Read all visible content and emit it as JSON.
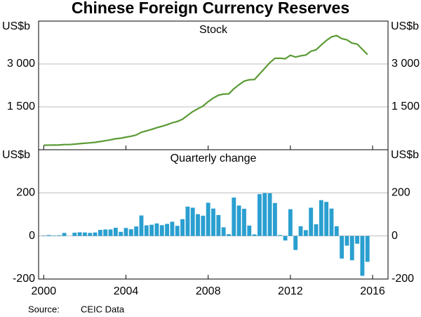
{
  "title": "Chinese Foreign Currency Reserves",
  "source_label": "Source:",
  "source": "CEIC Data",
  "chart_data": [
    {
      "type": "line",
      "title": "Stock",
      "ylabel": "US$b",
      "xlim": [
        1999.75,
        2016.75
      ],
      "ylim": [
        0,
        4500
      ],
      "yticks": [
        {
          "value": 1500,
          "label": "1 500"
        },
        {
          "value": 3000,
          "label": "3 000"
        }
      ],
      "grid": true,
      "x": [
        2000,
        2000.25,
        2000.5,
        2000.75,
        2001,
        2001.25,
        2001.5,
        2001.75,
        2002,
        2002.25,
        2002.5,
        2002.75,
        2003,
        2003.25,
        2003.5,
        2003.75,
        2004,
        2004.25,
        2004.5,
        2004.75,
        2005,
        2005.25,
        2005.5,
        2005.75,
        2006,
        2006.25,
        2006.5,
        2006.75,
        2007,
        2007.25,
        2007.5,
        2007.75,
        2008,
        2008.25,
        2008.5,
        2008.75,
        2009,
        2009.25,
        2009.5,
        2009.75,
        2010,
        2010.25,
        2010.5,
        2010.75,
        2011,
        2011.25,
        2011.5,
        2011.75,
        2012,
        2012.25,
        2012.5,
        2012.75,
        2013,
        2013.25,
        2013.5,
        2013.75,
        2014,
        2014.25,
        2014.5,
        2014.75,
        2015,
        2015.25,
        2015.5,
        2015.75
      ],
      "series": [
        {
          "name": "Stock",
          "color": "#5a9a34",
          "values": [
            157,
            161,
            163,
            166,
            180,
            180,
            195,
            212,
            228,
            242,
            258,
            286,
            316,
            346,
            384,
            403,
            440,
            471,
            515,
            610,
            659,
            711,
            769,
            819,
            875,
            941,
            988,
            1066,
            1202,
            1333,
            1434,
            1528,
            1682,
            1809,
            1906,
            1946,
            1954,
            2132,
            2273,
            2399,
            2447,
            2454,
            2648,
            2847,
            3045,
            3198,
            3202,
            3181,
            3305,
            3240,
            3285,
            3312,
            3443,
            3497,
            3663,
            3821,
            3948,
            3993,
            3888,
            3843,
            3730,
            3694,
            3514,
            3330
          ]
        }
      ]
    },
    {
      "type": "bar",
      "title": "Quarterly change",
      "ylabel": "US$b",
      "xlim": [
        1999.75,
        2016.75
      ],
      "xticks": [
        2000,
        2004,
        2008,
        2012,
        2016
      ],
      "ylim": [
        -200,
        400
      ],
      "yticks": [
        -200,
        0,
        200
      ],
      "grid": true,
      "x": [
        2000,
        2000.25,
        2000.5,
        2000.75,
        2001,
        2001.25,
        2001.5,
        2001.75,
        2002,
        2002.25,
        2002.5,
        2002.75,
        2003,
        2003.25,
        2003.5,
        2003.75,
        2004,
        2004.25,
        2004.5,
        2004.75,
        2005,
        2005.25,
        2005.5,
        2005.75,
        2006,
        2006.25,
        2006.5,
        2006.75,
        2007,
        2007.25,
        2007.5,
        2007.75,
        2008,
        2008.25,
        2008.5,
        2008.75,
        2009,
        2009.25,
        2009.5,
        2009.75,
        2010,
        2010.25,
        2010.5,
        2010.75,
        2011,
        2011.25,
        2011.5,
        2011.75,
        2012,
        2012.25,
        2012.5,
        2012.75,
        2013,
        2013.25,
        2013.5,
        2013.75,
        2014,
        2014.25,
        2014.5,
        2014.75,
        2015,
        2015.25,
        2015.5,
        2015.75
      ],
      "series": [
        {
          "name": "Quarterly change",
          "color": "#2a9fd0",
          "values": [
            2,
            4,
            2,
            3,
            14,
            0,
            15,
            17,
            16,
            14,
            16,
            28,
            30,
            30,
            38,
            19,
            37,
            31,
            44,
            95,
            49,
            52,
            58,
            50,
            56,
            66,
            47,
            78,
            136,
            131,
            101,
            94,
            154,
            127,
            97,
            40,
            8,
            178,
            141,
            126,
            48,
            7,
            194,
            199,
            198,
            153,
            4,
            -21,
            124,
            -65,
            45,
            27,
            131,
            54,
            166,
            158,
            127,
            45,
            -105,
            -45,
            -113,
            -36,
            -185,
            -120
          ]
        }
      ]
    }
  ]
}
